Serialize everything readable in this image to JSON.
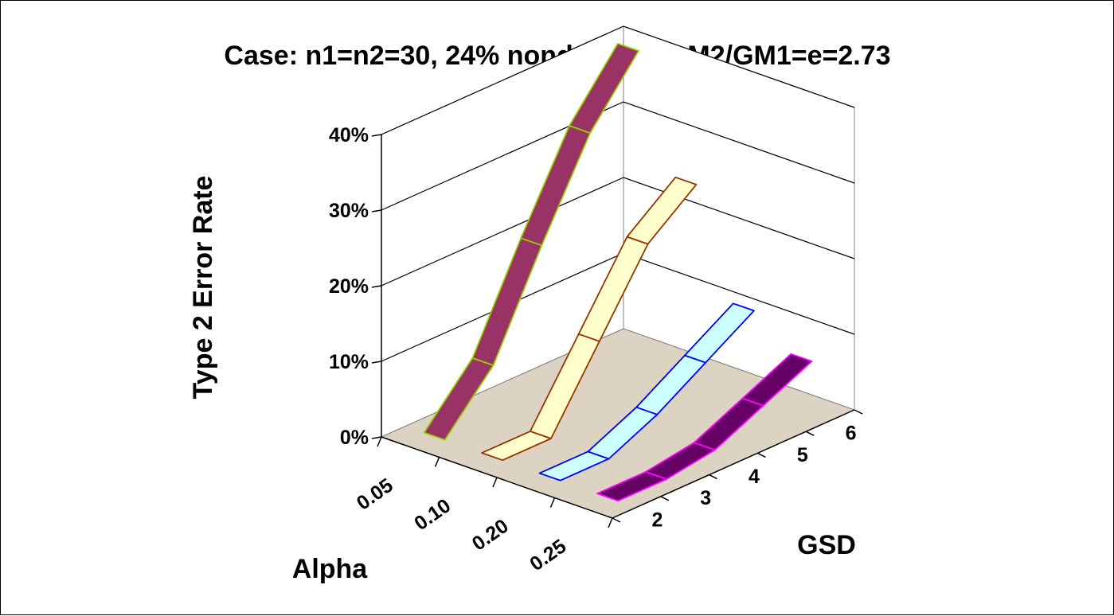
{
  "chart_data": {
    "type": "3d-ribbon-line",
    "title": "Case: n1=n2=30, 24% nondetects, GM2/GM1=e=2.73",
    "ylabel": "Type 2 Error Rate",
    "xlabel": "Alpha",
    "zlabel": "GSD",
    "ylim": [
      0,
      0.4
    ],
    "y_ticks": [
      "0%",
      "10%",
      "20%",
      "30%",
      "40%"
    ],
    "alpha_categories": [
      "0.05",
      "0.10",
      "0.20",
      "0.25"
    ],
    "gsd_categories": [
      "2",
      "3",
      "4",
      "5",
      "6"
    ],
    "grid": true,
    "series": [
      {
        "alpha": "0.05",
        "values": [
          0.0,
          0.07,
          0.2,
          0.32,
          0.4
        ],
        "fill": "#993366",
        "stroke": "#99cc00"
      },
      {
        "alpha": "0.10",
        "values": [
          0.0,
          0.0,
          0.1,
          0.2,
          0.25
        ],
        "fill": "#ffffcc",
        "stroke": "#993300"
      },
      {
        "alpha": "0.20",
        "values": [
          0.0,
          0.0,
          0.03,
          0.07,
          0.11
        ],
        "fill": "#ccffff",
        "stroke": "#0000ff"
      },
      {
        "alpha": "0.25",
        "values": [
          0.0,
          0.0,
          0.01,
          0.04,
          0.07
        ],
        "fill": "#660066",
        "stroke": "#ff00ff"
      }
    ],
    "colors": {
      "floor": "#dcd3c3",
      "wall": "#ffffff",
      "grid": "#000000",
      "wall_edge": "#808080"
    }
  }
}
